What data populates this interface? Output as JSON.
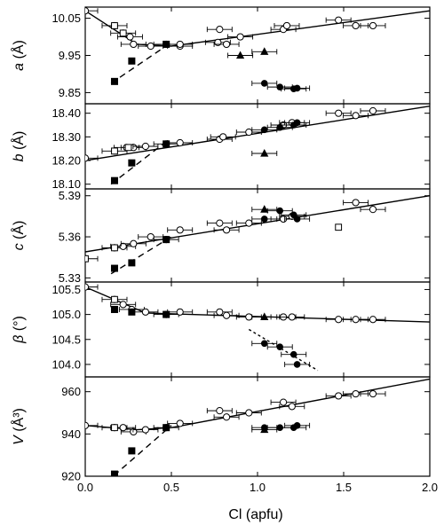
{
  "chart_data": {
    "type": "scatter",
    "xlabel": "Cl (apfu)",
    "xlim": [
      0,
      2.0
    ],
    "xticks": [
      "0.0",
      "0.5",
      "1.0",
      "1.5",
      "2.0"
    ],
    "xtick_values": [
      0,
      0.5,
      1.0,
      1.5,
      2.0
    ],
    "grid": false,
    "legend": "none",
    "panels": [
      {
        "key": "a",
        "ylabel_main": "a",
        "ylabel_unit": " (Å)",
        "ylim": [
          9.82,
          10.08
        ],
        "yticks": [
          9.85,
          9.95,
          10.05
        ],
        "ytick_labels": [
          "9.85",
          "9.95",
          "10.05"
        ],
        "open_circles": [
          [
            0.0,
            10.07
          ],
          [
            0.17,
            10.03
          ],
          [
            0.22,
            10.01
          ],
          [
            0.26,
            10.0
          ],
          [
            0.28,
            9.98
          ],
          [
            0.38,
            9.975
          ],
          [
            0.47,
            9.98
          ],
          [
            0.55,
            9.975
          ],
          [
            0.55,
            9.98
          ],
          [
            0.77,
            9.985
          ],
          [
            0.82,
            9.98
          ],
          [
            0.9,
            10.0
          ],
          [
            0.78,
            10.02
          ],
          [
            1.15,
            10.02
          ],
          [
            1.17,
            10.03
          ],
          [
            1.47,
            10.045
          ],
          [
            1.57,
            10.03
          ],
          [
            1.67,
            10.03
          ]
        ],
        "open_squares": [
          [
            0.17,
            10.03
          ],
          [
            0.22,
            10.01
          ]
        ],
        "filled_circles": [
          [
            1.04,
            9.875
          ],
          [
            1.13,
            9.865
          ],
          [
            1.21,
            9.86
          ],
          [
            1.23,
            9.862
          ]
        ],
        "filled_triangles": [
          [
            0.9,
            9.95
          ],
          [
            1.04,
            9.96
          ]
        ],
        "filled_squares": [
          [
            0.17,
            9.88
          ],
          [
            0.27,
            9.935
          ],
          [
            0.47,
            9.98
          ]
        ],
        "solid_line": [
          [
            0.0,
            10.07
          ],
          [
            0.3,
            9.98
          ],
          [
            0.5,
            9.975
          ],
          [
            2.0,
            10.07
          ]
        ],
        "dashed_line": [
          [
            0.15,
            9.875
          ],
          [
            0.5,
            9.985
          ]
        ],
        "dotted_line": []
      },
      {
        "key": "b",
        "ylabel_main": "b",
        "ylabel_unit": " (Å)",
        "ylim": [
          18.08,
          18.44
        ],
        "yticks": [
          18.1,
          18.2,
          18.3,
          18.4
        ],
        "ytick_labels": [
          "18.10",
          "18.20",
          "18.30",
          "18.40"
        ],
        "open_circles": [
          [
            0.0,
            18.21
          ],
          [
            0.17,
            18.24
          ],
          [
            0.24,
            18.255
          ],
          [
            0.28,
            18.255
          ],
          [
            0.35,
            18.26
          ],
          [
            0.47,
            18.27
          ],
          [
            0.55,
            18.275
          ],
          [
            0.78,
            18.29
          ],
          [
            0.8,
            18.3
          ],
          [
            0.95,
            18.32
          ],
          [
            1.15,
            18.35
          ],
          [
            1.2,
            18.36
          ],
          [
            1.47,
            18.4
          ],
          [
            1.57,
            18.39
          ],
          [
            1.67,
            18.41
          ]
        ],
        "open_squares": [
          [
            0.17,
            18.24
          ],
          [
            0.25,
            18.255
          ]
        ],
        "filled_circles": [
          [
            1.04,
            18.33
          ],
          [
            1.13,
            18.34
          ],
          [
            1.21,
            18.35
          ],
          [
            1.23,
            18.36
          ]
        ],
        "filled_triangles": [
          [
            1.04,
            18.23
          ]
        ],
        "filled_squares": [
          [
            0.17,
            18.115
          ],
          [
            0.27,
            18.19
          ],
          [
            0.47,
            18.27
          ]
        ],
        "solid_line": [
          [
            0.0,
            18.2
          ],
          [
            2.0,
            18.43
          ]
        ],
        "dashed_line": [
          [
            0.15,
            18.1
          ],
          [
            0.47,
            18.28
          ]
        ],
        "dotted_line": []
      },
      {
        "key": "c",
        "ylabel_main": "c",
        "ylabel_unit": " (Å)",
        "ylim": [
          5.327,
          5.395
        ],
        "yticks": [
          5.33,
          5.36,
          5.39
        ],
        "ytick_labels": [
          "5.33",
          "5.36",
          "5.39"
        ],
        "open_circles": [
          [
            0.0,
            5.344
          ],
          [
            0.17,
            5.352
          ],
          [
            0.22,
            5.353
          ],
          [
            0.28,
            5.355
          ],
          [
            0.38,
            5.36
          ],
          [
            0.47,
            5.358
          ],
          [
            0.55,
            5.365
          ],
          [
            0.78,
            5.37
          ],
          [
            0.82,
            5.365
          ],
          [
            0.95,
            5.37
          ],
          [
            1.15,
            5.373
          ],
          [
            1.2,
            5.375
          ],
          [
            1.57,
            5.385
          ],
          [
            1.67,
            5.38
          ]
        ],
        "open_squares": [
          [
            0.0,
            5.344
          ],
          [
            0.17,
            5.352
          ],
          [
            1.47,
            5.367
          ]
        ],
        "filled_circles": [
          [
            1.04,
            5.373
          ],
          [
            1.13,
            5.379
          ],
          [
            1.21,
            5.376
          ],
          [
            1.23,
            5.373
          ]
        ],
        "filled_triangles": [
          [
            1.04,
            5.38
          ]
        ],
        "filled_squares": [
          [
            0.17,
            5.337
          ],
          [
            0.27,
            5.341
          ],
          [
            0.47,
            5.358
          ]
        ],
        "solid_line": [
          [
            0.0,
            5.349
          ],
          [
            2.0,
            5.39
          ]
        ],
        "dashed_line": [
          [
            0.15,
            5.333
          ],
          [
            0.5,
            5.36
          ]
        ],
        "dotted_line": []
      },
      {
        "key": "beta",
        "ylabel_main": "β",
        "ylabel_unit": " (°)",
        "ylim": [
          103.75,
          105.65
        ],
        "yticks": [
          104.0,
          104.5,
          105.0,
          105.5
        ],
        "ytick_labels": [
          "104.0",
          "104.5",
          "105.0",
          "105.5"
        ],
        "open_circles": [
          [
            0.0,
            105.55
          ],
          [
            0.17,
            105.3
          ],
          [
            0.22,
            105.2
          ],
          [
            0.27,
            105.1
          ],
          [
            0.35,
            105.05
          ],
          [
            0.47,
            105.0
          ],
          [
            0.55,
            105.05
          ],
          [
            0.78,
            105.05
          ],
          [
            0.82,
            104.98
          ],
          [
            0.95,
            104.95
          ],
          [
            1.15,
            104.95
          ],
          [
            1.2,
            104.95
          ],
          [
            1.47,
            104.9
          ],
          [
            1.57,
            104.9
          ],
          [
            1.67,
            104.9
          ]
        ],
        "open_squares": [
          [
            0.17,
            105.3
          ]
        ],
        "filled_circles": [
          [
            1.04,
            104.42
          ],
          [
            1.13,
            104.35
          ],
          [
            1.21,
            104.2
          ],
          [
            1.23,
            104.0
          ]
        ],
        "filled_triangles": [
          [
            1.04,
            104.95
          ]
        ],
        "filled_squares": [
          [
            0.17,
            105.1
          ],
          [
            0.27,
            105.05
          ],
          [
            0.47,
            105.0
          ]
        ],
        "solid_line": [
          [
            0.0,
            105.55
          ],
          [
            0.35,
            105.03
          ],
          [
            2.0,
            104.85
          ]
        ],
        "dashed_line": [],
        "dotted_line": [
          [
            0.95,
            104.7
          ],
          [
            1.35,
            103.88
          ]
        ]
      },
      {
        "key": "V",
        "ylabel_main": "V",
        "ylabel_unit": " (Å³)",
        "ylim": [
          920,
          967
        ],
        "yticks": [
          920,
          940,
          960
        ],
        "ytick_labels": [
          "920",
          "940",
          "960"
        ],
        "open_circles": [
          [
            0.0,
            944
          ],
          [
            0.17,
            943
          ],
          [
            0.22,
            943
          ],
          [
            0.28,
            941
          ],
          [
            0.35,
            942
          ],
          [
            0.47,
            943
          ],
          [
            0.55,
            945
          ],
          [
            0.78,
            951
          ],
          [
            0.82,
            948
          ],
          [
            0.95,
            950
          ],
          [
            1.15,
            955
          ],
          [
            1.2,
            953
          ],
          [
            1.47,
            958
          ],
          [
            1.57,
            959
          ],
          [
            1.67,
            959
          ]
        ],
        "open_squares": [
          [
            0.17,
            943
          ]
        ],
        "filled_circles": [
          [
            1.04,
            943
          ],
          [
            1.13,
            943
          ],
          [
            1.21,
            943
          ],
          [
            1.23,
            944
          ]
        ],
        "filled_triangles": [
          [
            1.04,
            942
          ]
        ],
        "filled_squares": [
          [
            0.17,
            921
          ],
          [
            0.27,
            932
          ],
          [
            0.47,
            943
          ]
        ],
        "solid_line": [
          [
            0.0,
            944
          ],
          [
            0.3,
            942
          ],
          [
            0.5,
            943
          ],
          [
            2.0,
            966
          ]
        ],
        "dashed_line": [
          [
            0.12,
            917
          ],
          [
            0.5,
            944
          ]
        ],
        "dotted_line": []
      }
    ]
  }
}
